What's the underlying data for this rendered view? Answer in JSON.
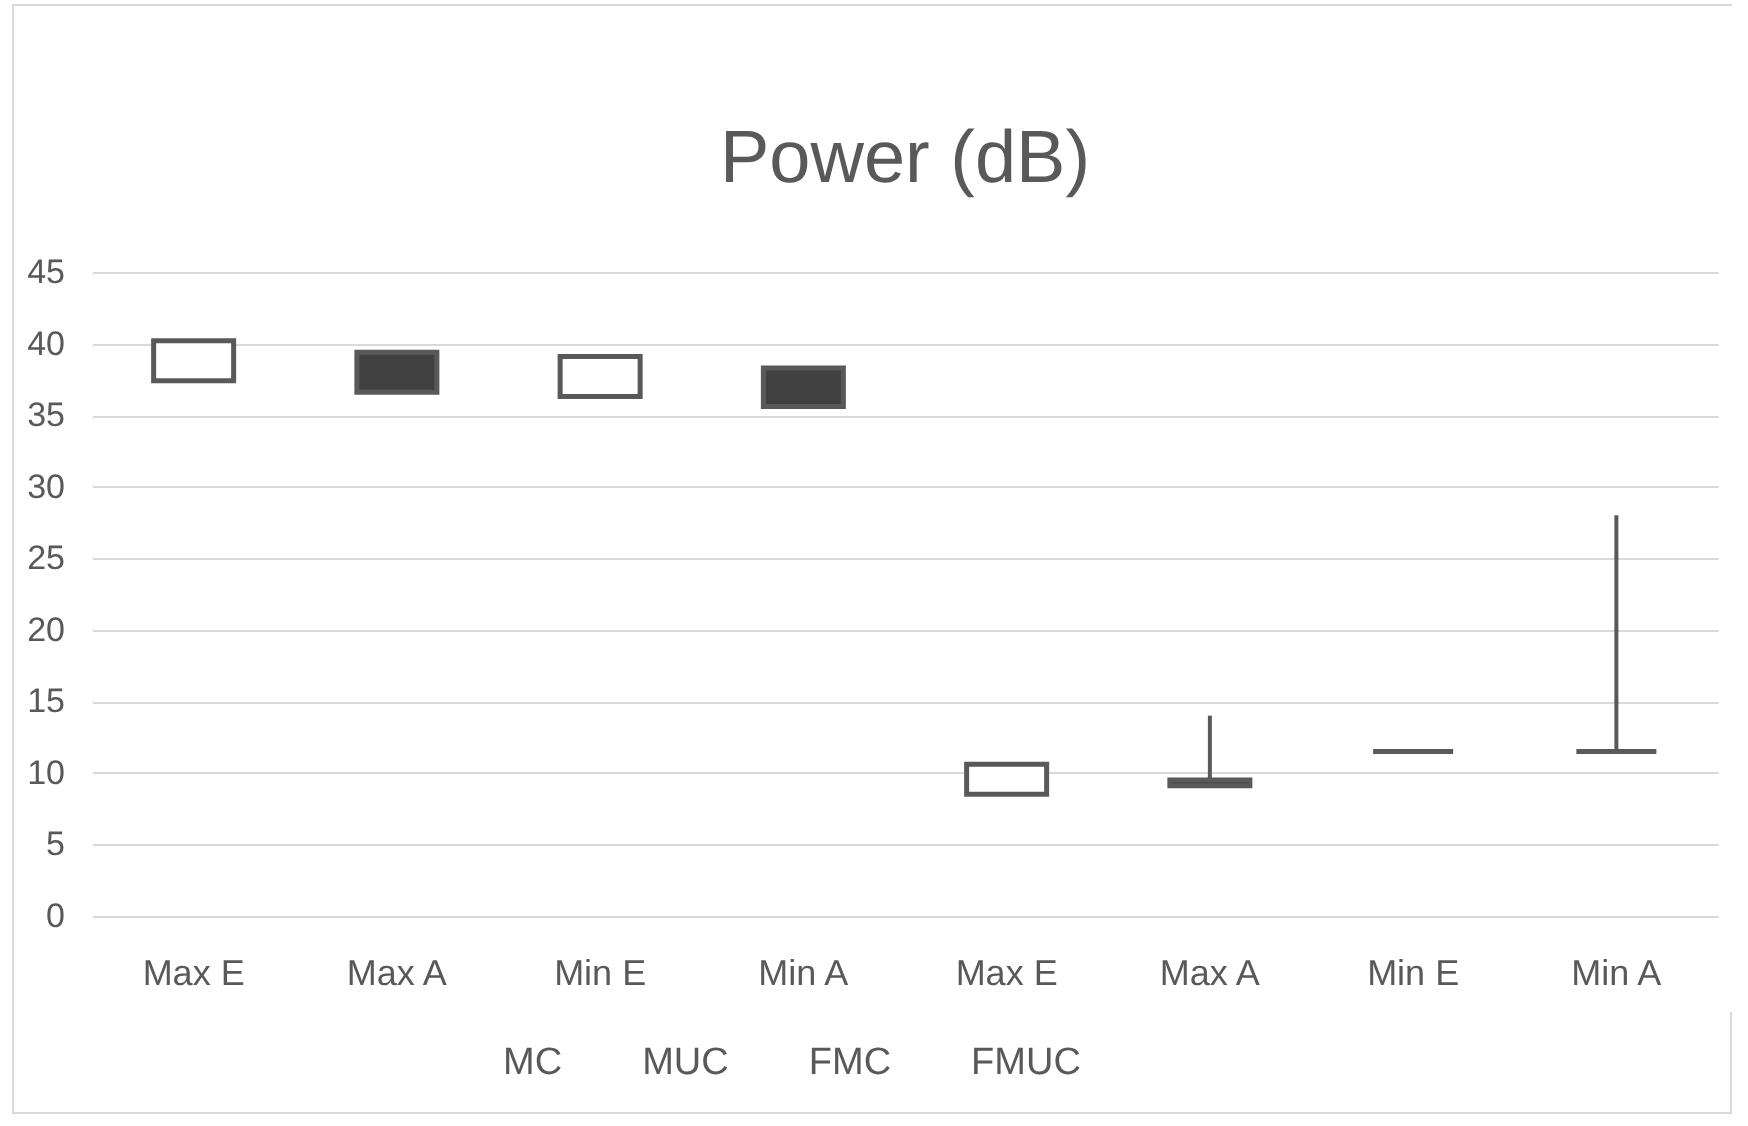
{
  "chart_data": {
    "type": "candlestick",
    "title": "Power (dB)",
    "categories": [
      "Max E",
      "Max A",
      "Min E",
      "Min A",
      "Max E",
      "Max A",
      "Min E",
      "Min A"
    ],
    "ohlc": [
      [
        37.4,
        40.2,
        37.4,
        40.2
      ],
      [
        39.4,
        39.5,
        36.6,
        36.6
      ],
      [
        36.3,
        39.1,
        36.3,
        39.1
      ],
      [
        38.3,
        38.3,
        35.6,
        35.6
      ],
      [
        8.5,
        10.6,
        8.5,
        10.6
      ],
      [
        9.5,
        14,
        9.1,
        9.1
      ],
      [
        11.5,
        11.5,
        11.5,
        11.5
      ],
      [
        11.5,
        28,
        11.5,
        11.5
      ]
    ],
    "colors": [
      "#ffffff",
      "#404040",
      "#ffffff",
      "#404040",
      "#ffffff",
      "#404040",
      "#595959",
      "#595959"
    ],
    "ylim": [
      0,
      45
    ],
    "yticks": [
      0,
      5,
      10,
      15,
      20,
      25,
      30,
      35,
      40,
      45
    ],
    "grid": "y",
    "annotations": [
      "MC",
      "MUC",
      "FMC",
      "FMUC"
    ]
  }
}
